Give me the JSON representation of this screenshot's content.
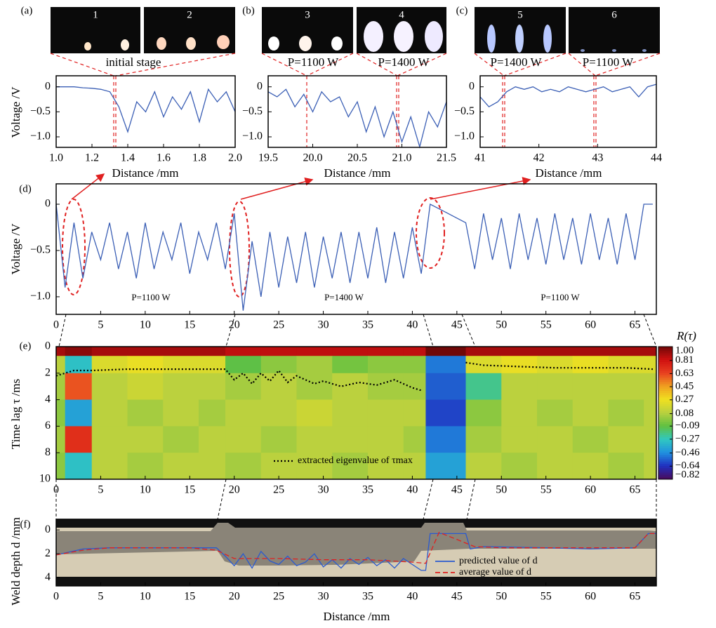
{
  "chart_data": [
    {
      "type": "line",
      "panel": "(a)",
      "image_labels": [
        "1",
        "2"
      ],
      "image_captions": [
        "initial stage"
      ],
      "xlabel": "Distance /mm",
      "ylabel": "Voltage /V",
      "x": [
        1.0,
        1.05,
        1.1,
        1.15,
        1.2,
        1.25,
        1.3,
        1.35,
        1.4,
        1.45,
        1.5,
        1.55,
        1.6,
        1.65,
        1.7,
        1.75,
        1.8,
        1.85,
        1.9,
        1.95,
        2.0
      ],
      "values": [
        0,
        0,
        0,
        -0.02,
        -0.03,
        -0.05,
        -0.1,
        -0.4,
        -0.9,
        -0.3,
        -0.5,
        -0.1,
        -0.6,
        -0.2,
        -0.45,
        -0.1,
        -0.7,
        -0.05,
        -0.3,
        -0.1,
        -0.5
      ],
      "color": "#3b5fb5",
      "xlim": [
        1.0,
        2.0
      ],
      "ylim": [
        -1.21,
        0.22
      ],
      "xticks": [
        {
          "value": 1,
          "label": "1.0"
        },
        1.2,
        1.4,
        1.6,
        1.8,
        {
          "value": 2,
          "label": "2.0"
        }
      ],
      "yticks": [
        0,
        {
          "value": -0.5,
          "label": "−0.5"
        },
        {
          "value": -1,
          "label": "−1.0"
        }
      ]
    },
    {
      "type": "line",
      "panel": "(b)",
      "image_labels": [
        "3",
        "4"
      ],
      "image_captions": [
        "P=1100 W",
        "P=1400 W"
      ],
      "xlabel": "Distance /mm",
      "x": [
        19.5,
        19.6,
        19.7,
        19.8,
        19.9,
        20.0,
        20.1,
        20.2,
        20.3,
        20.4,
        20.5,
        20.6,
        20.7,
        20.8,
        20.9,
        21.0,
        21.1,
        21.2,
        21.3,
        21.4,
        21.5
      ],
      "values": [
        -0.1,
        -0.2,
        -0.05,
        -0.4,
        -0.15,
        -0.5,
        -0.1,
        -0.3,
        -0.2,
        -0.6,
        -0.3,
        -0.9,
        -0.4,
        -1.0,
        -0.5,
        -1.1,
        -0.6,
        -1.2,
        -0.5,
        -0.8,
        -0.3
      ],
      "color": "#3b5fb5",
      "xlim": [
        19.5,
        21.5
      ],
      "ylim": [
        -1.21,
        0.22
      ],
      "xticks": [
        19.5,
        {
          "value": 20,
          "label": "20.0"
        },
        20.5,
        {
          "value": 21,
          "label": "21.0"
        },
        21.5
      ],
      "yticks": [
        0,
        {
          "value": -0.5,
          "label": "−0.5"
        },
        {
          "value": -1,
          "label": "−1.0"
        }
      ]
    },
    {
      "type": "line",
      "panel": "(c)",
      "image_labels": [
        "5",
        "6"
      ],
      "image_captions": [
        "P=1400 W",
        "P=1100 W"
      ],
      "xlabel": "Distance /mm",
      "x": [
        41,
        41.15,
        41.3,
        41.45,
        41.6,
        41.75,
        41.9,
        42.05,
        42.2,
        42.35,
        42.5,
        42.65,
        42.8,
        42.95,
        43.1,
        43.25,
        43.4,
        43.55,
        43.7,
        43.85,
        44
      ],
      "values": [
        -0.2,
        -0.4,
        -0.3,
        -0.1,
        0.0,
        -0.05,
        0.0,
        -0.1,
        -0.05,
        -0.1,
        0.0,
        -0.05,
        -0.1,
        -0.05,
        0.0,
        -0.1,
        -0.05,
        0.0,
        -0.2,
        0.0,
        0.05
      ],
      "color": "#3b5fb5",
      "xlim": [
        41,
        44
      ],
      "ylim": [
        -1.21,
        0.22
      ],
      "xticks": [
        41,
        42,
        43,
        44
      ],
      "yticks": [
        0,
        {
          "value": -0.5,
          "label": "−0.5"
        },
        {
          "value": -1,
          "label": "−1.0"
        }
      ]
    },
    {
      "type": "line",
      "panel": "(d)",
      "ylabel": "Voltage /V",
      "annotations": [
        "P=1100 W",
        "P=1400 W",
        "P=1100 W"
      ],
      "x": [
        0,
        1,
        2,
        3,
        4,
        5,
        6,
        7,
        8,
        9,
        10,
        11,
        12,
        13,
        14,
        15,
        16,
        17,
        18,
        19,
        20,
        21,
        22,
        23,
        24,
        25,
        26,
        27,
        28,
        29,
        30,
        31,
        32,
        33,
        34,
        35,
        36,
        37,
        38,
        39,
        40,
        41,
        42,
        43,
        44,
        45,
        46,
        47,
        48,
        49,
        50,
        51,
        52,
        53,
        54,
        55,
        56,
        57,
        58,
        59,
        60,
        61,
        62,
        63,
        64,
        65,
        66,
        67
      ],
      "values": [
        0,
        -0.9,
        -0.2,
        -0.8,
        -0.3,
        -0.6,
        -0.2,
        -0.7,
        -0.3,
        -0.8,
        -0.2,
        -0.7,
        -0.3,
        -0.6,
        -0.2,
        -0.75,
        -0.3,
        -0.6,
        -0.2,
        -0.7,
        -0.1,
        -1.15,
        -0.4,
        -1.0,
        -0.3,
        -0.9,
        -0.35,
        -0.85,
        -0.3,
        -0.9,
        -0.35,
        -0.8,
        -0.3,
        -0.85,
        -0.3,
        -0.8,
        -0.25,
        -0.85,
        -0.3,
        -0.8,
        -0.25,
        -0.75,
        0.0,
        -0.05,
        -0.1,
        -0.15,
        -0.2,
        -0.7,
        -0.1,
        -0.6,
        -0.15,
        -0.7,
        -0.1,
        -0.6,
        -0.15,
        -0.65,
        -0.1,
        -0.6,
        -0.15,
        -0.65,
        -0.1,
        -0.6,
        -0.15,
        -0.65,
        -0.1,
        -0.6,
        0.0,
        0.0
      ],
      "color": "#3b5fb5",
      "xlim": [
        0,
        67.4
      ],
      "ylim": [
        -1.19,
        0.22
      ],
      "xticks": [
        0,
        5,
        10,
        15,
        20,
        25,
        30,
        35,
        40,
        45,
        50,
        55,
        60,
        65
      ],
      "yticks": [
        0,
        {
          "value": -0.5,
          "label": "−0.5"
        },
        {
          "value": -1,
          "label": "−1.0"
        }
      ]
    },
    {
      "type": "heatmap",
      "panel": "(e)",
      "ylabel": "Time lag τ /ms",
      "colorbar_label": "R(τ)",
      "x_edges": [
        0,
        1,
        4,
        8,
        12,
        16,
        19,
        23,
        27,
        31,
        35,
        39,
        41.5,
        46,
        50,
        54,
        58,
        62,
        66,
        67.4
      ],
      "y_edges": [
        0,
        0.7,
        2,
        4,
        6,
        8,
        10
      ],
      "z": [
        [
          0.9,
          0.95,
          0.9,
          0.9,
          0.9,
          0.9,
          0.85,
          0.85,
          0.85,
          0.85,
          0.85,
          0.85,
          1.0,
          0.9,
          0.9,
          0.9,
          0.9,
          0.9,
          0.9
        ],
        [
          0.1,
          -0.3,
          0.2,
          0.25,
          0.2,
          0.2,
          -0.1,
          0.0,
          0.05,
          -0.05,
          0.0,
          0.0,
          -0.5,
          0.2,
          0.25,
          0.2,
          0.25,
          0.2,
          0.2
        ],
        [
          0.05,
          0.6,
          0.1,
          0.15,
          0.1,
          0.1,
          0.05,
          0.1,
          0.05,
          0.1,
          0.05,
          0.05,
          -0.55,
          -0.2,
          0.1,
          0.1,
          0.1,
          0.1,
          0.1
        ],
        [
          0.0,
          -0.4,
          0.1,
          0.05,
          0.1,
          0.05,
          0.1,
          0.1,
          0.15,
          0.1,
          0.1,
          0.1,
          -0.6,
          0.0,
          0.1,
          0.05,
          0.1,
          0.05,
          0.1
        ],
        [
          0.05,
          0.7,
          0.1,
          0.1,
          0.05,
          0.1,
          0.1,
          0.05,
          0.1,
          0.1,
          0.1,
          0.05,
          -0.5,
          0.05,
          0.1,
          0.1,
          0.05,
          0.1,
          0.1
        ],
        [
          0.0,
          -0.3,
          0.1,
          0.05,
          0.1,
          0.1,
          0.05,
          0.1,
          0.1,
          0.05,
          0.1,
          0.1,
          -0.4,
          0.1,
          0.05,
          0.1,
          0.1,
          0.05,
          0.1
        ]
      ],
      "zlim": [
        -0.82,
        1.0
      ],
      "colorbar_ticks": [
        {
          "value": 1,
          "label": "1.00"
        },
        0.81,
        0.63,
        0.45,
        0.27,
        0.08,
        {
          "value": -0.09,
          "label": "−0.09"
        },
        {
          "value": -0.27,
          "label": "−0.27"
        },
        {
          "value": -0.46,
          "label": "−0.46"
        },
        {
          "value": -0.64,
          "label": "−0.64"
        },
        {
          "value": -0.82,
          "label": "−0.82"
        }
      ],
      "xlim": [
        0,
        67.4
      ],
      "ylim": [
        0,
        10
      ],
      "y_inverted": true,
      "xticks": [
        0,
        5,
        10,
        15,
        20,
        25,
        30,
        35,
        40,
        45,
        50,
        55,
        60,
        65
      ],
      "yticks": [
        0,
        2,
        4,
        6,
        8,
        10
      ],
      "series": [
        {
          "name": "extracted eigenvalue of τmax",
          "color": "#000000",
          "style": "dotted",
          "x": [
            0,
            2,
            4,
            8,
            12,
            16,
            19,
            20,
            21,
            22,
            23,
            24,
            25,
            26,
            27,
            28,
            29,
            30,
            32,
            34,
            36,
            38,
            40,
            41,
            43.5,
            46,
            48,
            52,
            56,
            60,
            64,
            67
          ],
          "values": [
            2.2,
            1.8,
            1.8,
            1.7,
            1.7,
            1.7,
            1.7,
            2.5,
            2.0,
            2.8,
            2.0,
            2.6,
            1.8,
            2.7,
            2.2,
            2.5,
            2.8,
            2.6,
            3.0,
            2.7,
            2.9,
            2.5,
            3.1,
            3.3,
            null,
            1.2,
            1.4,
            1.5,
            1.6,
            1.6,
            1.6,
            1.7
          ]
        }
      ]
    },
    {
      "type": "line",
      "panel": "(f)",
      "ylabel": "Weld depth d /mm",
      "xlabel": "Distance /mm",
      "xlim": [
        0,
        67.4
      ],
      "ylim": [
        -0.9,
        4.7
      ],
      "y_inverted": true,
      "xticks": [
        0,
        5,
        10,
        15,
        20,
        25,
        30,
        35,
        40,
        45,
        50,
        55,
        60,
        65
      ],
      "yticks": [
        0,
        2,
        4
      ],
      "series": [
        {
          "name": "predicted value of d",
          "color": "#2a5ad0",
          "style": "solid",
          "x": [
            0,
            3,
            6,
            10,
            15,
            18,
            19,
            20,
            21,
            22,
            23,
            24,
            25,
            26,
            27,
            28,
            29,
            30,
            31,
            32,
            33,
            34,
            35,
            36,
            37,
            38,
            39,
            40,
            41,
            41.5,
            42,
            46,
            46.5,
            48,
            55,
            60,
            65,
            66.5,
            67.4
          ],
          "values": [
            2.1,
            1.6,
            1.5,
            1.5,
            1.5,
            1.5,
            2.2,
            3.0,
            2.0,
            3.2,
            1.8,
            2.6,
            2.9,
            2.2,
            3.0,
            2.7,
            2.0,
            3.1,
            2.5,
            3.2,
            2.4,
            2.9,
            2.3,
            3.0,
            2.5,
            3.2,
            2.4,
            2.9,
            3.4,
            3.4,
            0.3,
            0.3,
            1.6,
            1.4,
            1.5,
            1.6,
            1.5,
            0.3,
            0.3
          ]
        },
        {
          "name": "average value of d",
          "color": "#e02020",
          "style": "dashed",
          "x": [
            0,
            3,
            6,
            15,
            18,
            20,
            25,
            30,
            35,
            40,
            41.5,
            43,
            47,
            50,
            60,
            65,
            66.5,
            67.4
          ],
          "values": [
            2.1,
            1.7,
            1.5,
            1.5,
            1.7,
            2.4,
            2.4,
            2.5,
            2.5,
            2.7,
            2.8,
            0.2,
            1.4,
            1.5,
            1.5,
            1.5,
            0.3,
            0.3
          ]
        }
      ]
    }
  ]
}
